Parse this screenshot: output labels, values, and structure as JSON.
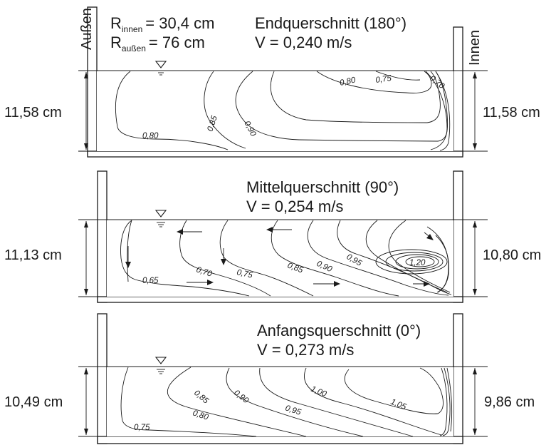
{
  "header": {
    "r_inner_symbol": "R",
    "r_inner_sub": "innen",
    "r_inner_value": "= 30,4 cm",
    "r_outer_symbol": "R",
    "r_outer_sub": "außen",
    "r_outer_value": "= 76 cm",
    "left_side_label": "Außen",
    "right_side_label": "Innen"
  },
  "sections": [
    {
      "title": "Endquerschnitt (180°)",
      "velocity": "V = 0,240 m/s",
      "left_depth": "11,58 cm",
      "right_depth": "11,58 cm",
      "isolines": [
        "0,80",
        "0,85",
        "0,90",
        "0,80",
        "0,75",
        "0,70"
      ]
    },
    {
      "title": "Mittelquerschnitt (90°)",
      "velocity": "V = 0,254 m/s",
      "left_depth": "11,13 cm",
      "right_depth": "10,80 cm",
      "isolines": [
        "0,65",
        "0,70",
        "0,75",
        "0,85",
        "0,90",
        "0,95",
        "1,20"
      ]
    },
    {
      "title": "Anfangsquerschnitt (0°)",
      "velocity": "V = 0,273 m/s",
      "left_depth": "10,49 cm",
      "right_depth": "9,86 cm",
      "isolines": [
        "0,75",
        "0,80",
        "0,85",
        "0,90",
        "0,95",
        "1,00",
        "1,05"
      ]
    }
  ]
}
